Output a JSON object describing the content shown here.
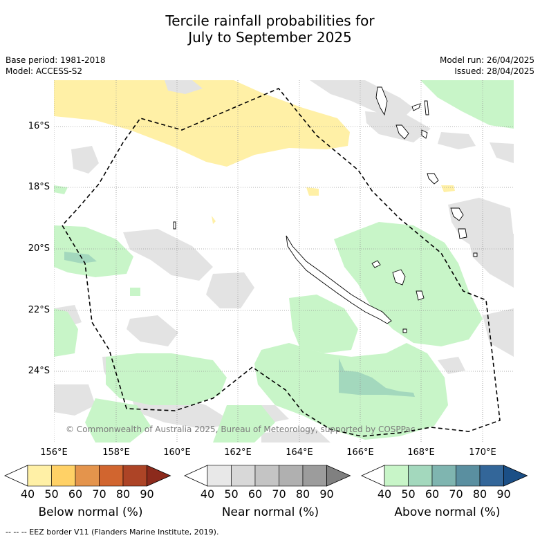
{
  "title_line1": "Tercile rainfall probabilities for",
  "title_line2": "July to September 2025",
  "base_period": "Base period: 1981-2018",
  "model": "Model: ACCESS-S2",
  "model_run": "Model run: 26/04/2025",
  "issued": "Issued: 28/04/2025",
  "lat_labels": [
    "16°S",
    "18°S",
    "20°S",
    "22°S",
    "24°S"
  ],
  "lon_labels": [
    "156°E",
    "158°E",
    "160°E",
    "162°E",
    "164°E",
    "166°E",
    "168°E",
    "170°E"
  ],
  "copyright": "© Commonwealth of Australia 2025, Bureau of Meteorology, supported by COSPPac",
  "colorbars": [
    {
      "label": "Below normal (%)",
      "ticks": [
        "40",
        "50",
        "60",
        "70",
        "80",
        "90"
      ],
      "colors": [
        "#ffffff",
        "#fff0a6",
        "#ffd166",
        "#e4944c",
        "#d1652f",
        "#ad4426",
        "#8c2a1c"
      ]
    },
    {
      "label": "Near normal (%)",
      "ticks": [
        "40",
        "50",
        "60",
        "70",
        "80",
        "90"
      ],
      "colors": [
        "#ffffff",
        "#e8e8e8",
        "#d8d8d8",
        "#c4c4c4",
        "#b0b0b0",
        "#9c9c9c",
        "#808080"
      ]
    },
    {
      "label": "Above normal (%)",
      "ticks": [
        "40",
        "50",
        "60",
        "70",
        "80",
        "90"
      ],
      "colors": [
        "#ffffff",
        "#c8f5c8",
        "#a3d8bd",
        "#7fb5b0",
        "#5a8fa0",
        "#336699",
        "#1b4f86"
      ]
    }
  ],
  "footer": "--  --  -- EEZ border V11 (Flanders Marine Institute, 2019)."
}
